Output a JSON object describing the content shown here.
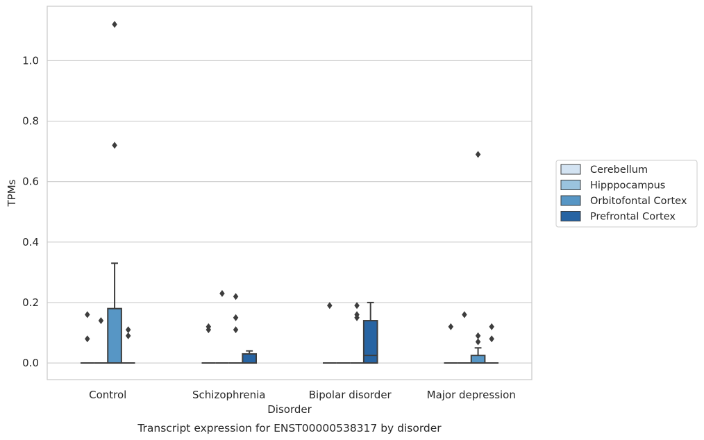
{
  "chart_data": {
    "type": "box",
    "xlabel": "Disorder",
    "ylabel": "TPMs",
    "caption": "Transcript expression for ENST00000538317 by disorder",
    "ylim": [
      -0.055,
      1.18
    ],
    "yticks": [
      0.0,
      0.2,
      0.4,
      0.6,
      0.8,
      1.0
    ],
    "ytick_labels": [
      "0.0",
      "0.2",
      "0.4",
      "0.6",
      "0.8",
      "1.0"
    ],
    "grid": "horizontal",
    "legend_position": "right",
    "categories": [
      "Control",
      "Schizophrenia",
      "Bipolar disorder",
      "Major depression"
    ],
    "series": [
      {
        "name": "Cerebellum",
        "color": "#d3e3f2",
        "boxes": [
          {
            "q1": 0,
            "median": 0,
            "q3": 0,
            "whisker_low": 0,
            "whisker_high": 0,
            "outliers": [
              0.08,
              0.16
            ]
          },
          {
            "q1": 0,
            "median": 0,
            "q3": 0,
            "whisker_low": 0,
            "whisker_high": 0,
            "outliers": [
              0.11,
              0.12
            ]
          },
          {
            "q1": 0,
            "median": 0,
            "q3": 0,
            "whisker_low": 0,
            "whisker_high": 0,
            "outliers": [
              0.19
            ]
          },
          {
            "q1": 0,
            "median": 0,
            "q3": 0,
            "whisker_low": 0,
            "whisker_high": 0,
            "outliers": [
              0.12
            ]
          }
        ]
      },
      {
        "name": "Hipppocampus",
        "color": "#9ac3de",
        "boxes": [
          {
            "q1": 0,
            "median": 0,
            "q3": 0,
            "whisker_low": 0,
            "whisker_high": 0,
            "outliers": [
              0.14
            ]
          },
          {
            "q1": 0,
            "median": 0,
            "q3": 0,
            "whisker_low": 0,
            "whisker_high": 0,
            "outliers": [
              0.23
            ]
          },
          {
            "q1": 0,
            "median": 0,
            "q3": 0,
            "whisker_low": 0,
            "whisker_high": 0,
            "outliers": []
          },
          {
            "q1": 0,
            "median": 0,
            "q3": 0,
            "whisker_low": 0,
            "whisker_high": 0,
            "outliers": [
              0.16
            ]
          }
        ]
      },
      {
        "name": "Orbitofontal Cortex",
        "color": "#5796c5",
        "boxes": [
          {
            "q1": 0,
            "median": 0,
            "q3": 0.18,
            "whisker_low": 0,
            "whisker_high": 0.33,
            "outliers": [
              0.72,
              1.12
            ]
          },
          {
            "q1": 0,
            "median": 0,
            "q3": 0,
            "whisker_low": 0,
            "whisker_high": 0,
            "outliers": [
              0.11,
              0.15,
              0.22
            ]
          },
          {
            "q1": 0,
            "median": 0,
            "q3": 0,
            "whisker_low": 0,
            "whisker_high": 0,
            "outliers": [
              0.15,
              0.16,
              0.19
            ]
          },
          {
            "q1": 0,
            "median": 0,
            "q3": 0.025,
            "whisker_low": 0,
            "whisker_high": 0.05,
            "outliers": [
              0.07,
              0.09,
              0.69
            ]
          }
        ]
      },
      {
        "name": "Prefrontal Cortex",
        "color": "#2764a3",
        "boxes": [
          {
            "q1": 0,
            "median": 0,
            "q3": 0,
            "whisker_low": 0,
            "whisker_high": 0,
            "outliers": [
              0.09,
              0.11
            ]
          },
          {
            "q1": 0,
            "median": 0,
            "q3": 0.03,
            "whisker_low": 0,
            "whisker_high": 0.04,
            "outliers": []
          },
          {
            "q1": 0,
            "median": 0.025,
            "q3": 0.14,
            "whisker_low": 0,
            "whisker_high": 0.2,
            "outliers": []
          },
          {
            "q1": 0,
            "median": 0,
            "q3": 0,
            "whisker_low": 0,
            "whisker_high": 0,
            "outliers": [
              0.08,
              0.12
            ]
          }
        ]
      }
    ]
  }
}
